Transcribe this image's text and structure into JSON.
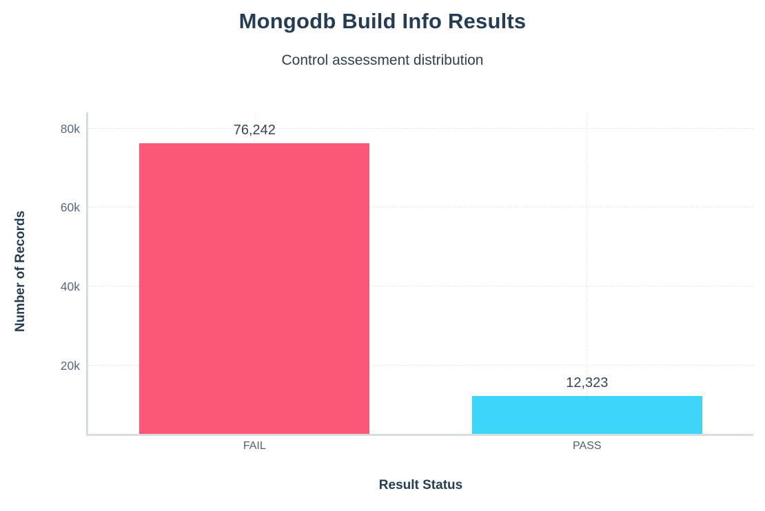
{
  "chart_data": {
    "type": "bar",
    "title": "Mongodb Build Info Results",
    "subtitle": "Control assessment distribution",
    "xlabel": "Result Status",
    "ylabel": "Number of Records",
    "categories": [
      "FAIL",
      "PASS"
    ],
    "values": [
      76242,
      12323
    ],
    "value_labels": [
      "76,242",
      "12,323"
    ],
    "bar_colors": [
      "#fb5777",
      "#3ed5fb"
    ],
    "yticks": [
      {
        "value": 20000,
        "label": "20k"
      },
      {
        "value": 40000,
        "label": "40k"
      },
      {
        "value": 60000,
        "label": "60k"
      },
      {
        "value": 80000,
        "label": "80k"
      }
    ],
    "ylim": [
      2750,
      83750
    ],
    "grid": true,
    "legend": false,
    "colors": {
      "background": "#ffffff",
      "title": "#253c55",
      "subtitle": "#2e4154",
      "axis_title": "#253c55",
      "tick_label": "#56687c",
      "category_label": "#4f5e6d",
      "value_label": "#34455a",
      "axis_line": "#d7dce0",
      "grid_line": "#e3e8ec"
    }
  }
}
